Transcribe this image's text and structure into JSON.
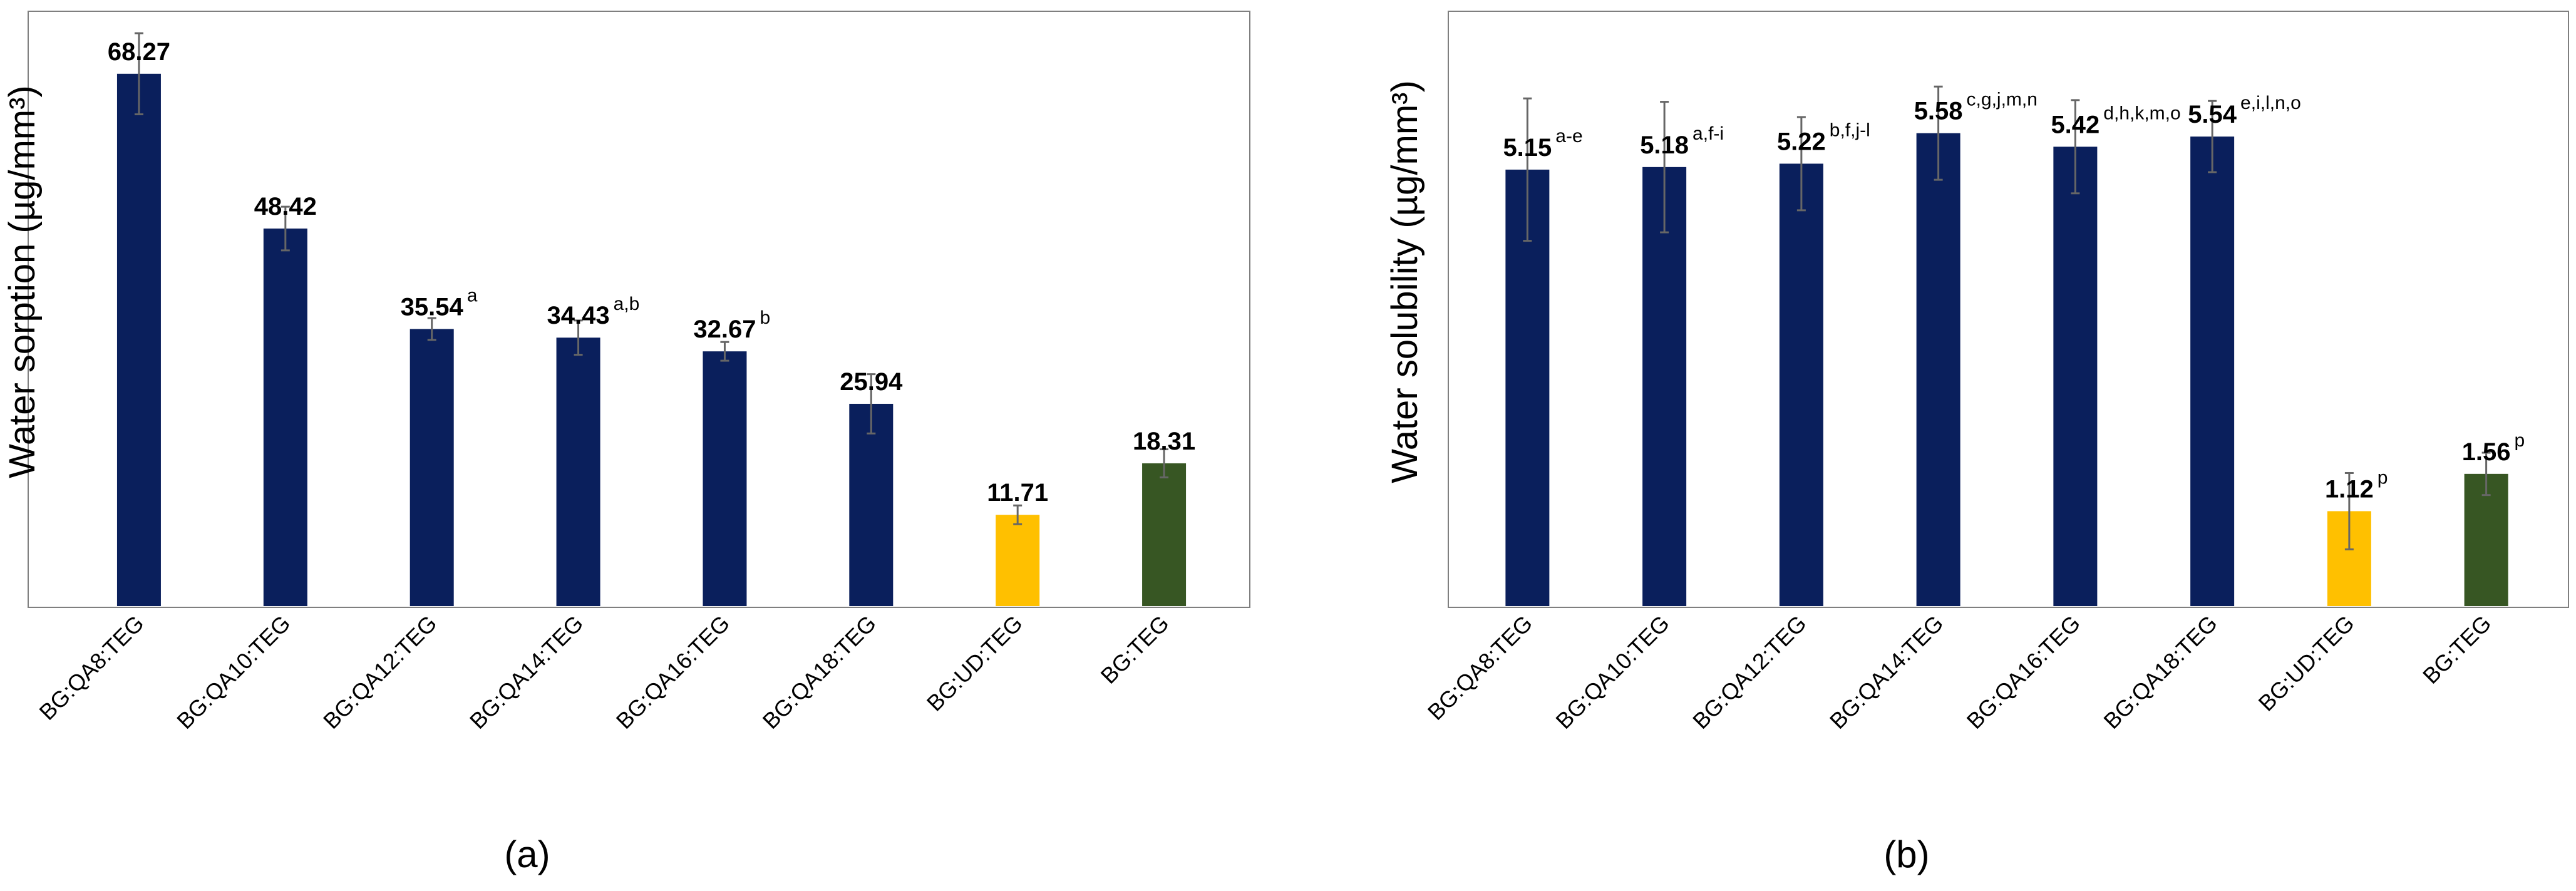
{
  "colors": {
    "navy": "#0A1F5C",
    "yellow": "#FFC000",
    "green": "#375623",
    "errorbar": "#666666",
    "frame": "#7F7F7F",
    "text": "#000000"
  },
  "chart_data": [
    {
      "type": "bar",
      "panel_label": "(a)",
      "ylabel": "Water sorption (µg/mm³)",
      "ylim": [
        0,
        75
      ],
      "categories": [
        "BG:QA8:TEG",
        "BG:QA10:TEG",
        "BG:QA12:TEG",
        "BG:QA14:TEG",
        "BG:QA16:TEG",
        "BG:QA18:TEG",
        "BG:UD:TEG",
        "BG:TEG"
      ],
      "values": [
        68.27,
        48.42,
        35.54,
        34.43,
        32.67,
        25.94,
        11.71,
        18.31
      ],
      "errors": [
        5.2,
        2.8,
        1.4,
        2.2,
        1.2,
        3.8,
        1.2,
        1.8
      ],
      "value_labels": [
        "68.27",
        "48.42",
        "35.54",
        "34.43",
        "32.67",
        "25.94",
        "11.71",
        "18.31"
      ],
      "superscripts": [
        "",
        "",
        "a",
        "a,b",
        "b",
        "",
        "",
        ""
      ],
      "bar_colors": [
        "navy",
        "navy",
        "navy",
        "navy",
        "navy",
        "navy",
        "yellow",
        "green"
      ]
    },
    {
      "type": "bar",
      "panel_label": "(b)",
      "ylabel": "Water solubility (µg/mm³)",
      "ylim": [
        0,
        6.9
      ],
      "categories": [
        "BG:QA8:TEG",
        "BG:QA10:TEG",
        "BG:QA12:TEG",
        "BG:QA14:TEG",
        "BG:QA16:TEG",
        "BG:QA18:TEG",
        "BG:UD:TEG",
        "BG:TEG"
      ],
      "values": [
        5.15,
        5.18,
        5.22,
        5.58,
        5.42,
        5.54,
        1.12,
        1.56
      ],
      "errors": [
        0.84,
        0.77,
        0.55,
        0.55,
        0.55,
        0.42,
        0.45,
        0.25
      ],
      "value_labels": [
        "5.15",
        "5.18",
        "5.22",
        "5.58",
        "5.42",
        "5.54",
        "1.12",
        "1.56"
      ],
      "superscripts": [
        "a-e",
        "a,f-i",
        "b,f,j-l",
        "c,g,j,m,n",
        "d,h,k,m,o",
        "e,i,l,n,o",
        "p",
        "p"
      ],
      "bar_colors": [
        "navy",
        "navy",
        "navy",
        "navy",
        "navy",
        "navy",
        "yellow",
        "green"
      ]
    }
  ]
}
